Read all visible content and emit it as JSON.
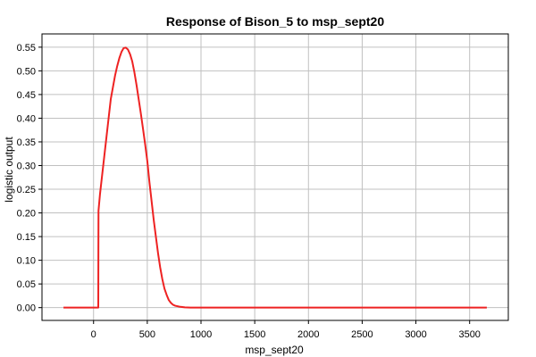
{
  "chart_data": {
    "type": "line",
    "title": "Response of Bison_5 to msp_sept20",
    "xlabel": "msp_sept20",
    "ylabel": "logistic output",
    "xlim": [
      -480,
      3860
    ],
    "ylim": [
      -0.027,
      0.578
    ],
    "x_ticks": [
      0,
      500,
      1000,
      1500,
      2000,
      2500,
      3000,
      3500
    ],
    "y_ticks": [
      0.0,
      0.05,
      0.1,
      0.15,
      0.2,
      0.25,
      0.3,
      0.35,
      0.4,
      0.45,
      0.5,
      0.55
    ],
    "grid": true,
    "series": [
      {
        "color": "#ee2222",
        "x": [
          -280,
          40,
          44,
          45,
          46,
          60,
          80,
          100,
          120,
          140,
          160,
          180,
          200,
          220,
          240,
          260,
          280,
          300,
          320,
          340,
          360,
          380,
          400,
          420,
          440,
          460,
          480,
          500,
          520,
          540,
          560,
          580,
          600,
          620,
          640,
          660,
          680,
          700,
          720,
          740,
          760,
          800,
          850,
          900,
          1000,
          1500,
          2000,
          2500,
          3000,
          3500,
          3660
        ],
        "y": [
          0.0,
          0.0,
          0.0,
          0.12,
          0.205,
          0.24,
          0.28,
          0.32,
          0.36,
          0.4,
          0.44,
          0.465,
          0.49,
          0.51,
          0.527,
          0.54,
          0.548,
          0.549,
          0.545,
          0.535,
          0.52,
          0.497,
          0.47,
          0.44,
          0.41,
          0.378,
          0.345,
          0.31,
          0.265,
          0.225,
          0.185,
          0.15,
          0.115,
          0.085,
          0.06,
          0.04,
          0.027,
          0.016,
          0.01,
          0.006,
          0.004,
          0.002,
          0.0005,
          0.0,
          0.0,
          0.0,
          0.0,
          0.0,
          0.0,
          0.0,
          0.0
        ]
      }
    ]
  }
}
